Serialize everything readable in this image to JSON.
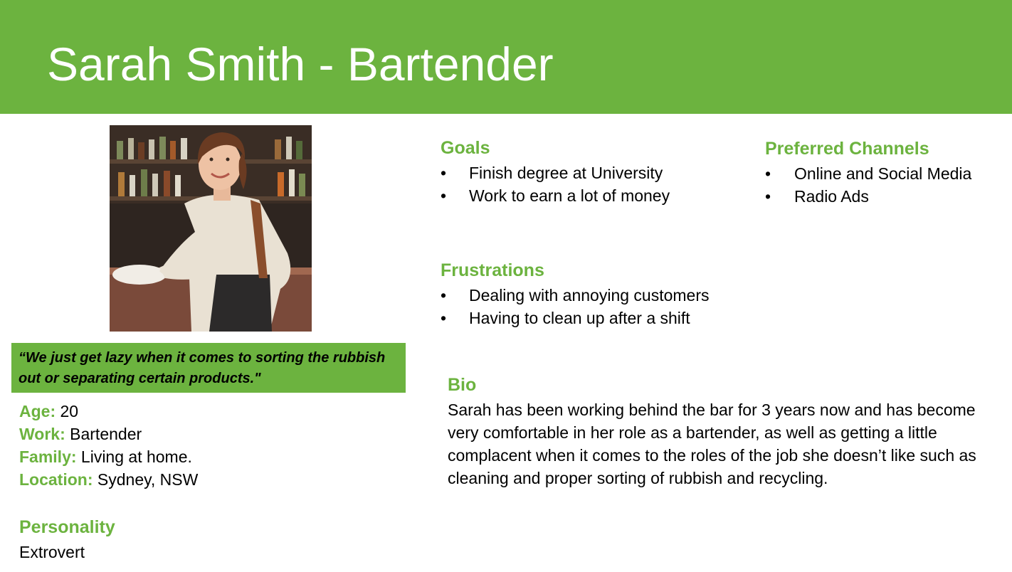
{
  "header": {
    "title": "Sarah Smith - Bartender",
    "color": "#6cb33f"
  },
  "photo": {
    "description_icon": "bartender-photo"
  },
  "quote": "“We just get lazy when it comes to sorting the rubbish out or separating certain products.\"",
  "profile": {
    "age_label": "Age:",
    "age": "20",
    "work_label": "Work:",
    "work": "Bartender",
    "family_label": "Family:",
    "family": "Living at home.",
    "location_label": "Location:",
    "location": "Sydney, NSW"
  },
  "personality": {
    "heading": "Personality",
    "value": "Extrovert"
  },
  "goals": {
    "heading": "Goals",
    "items": [
      "Finish degree at University",
      "Work to earn a lot of money"
    ]
  },
  "channels": {
    "heading": "Preferred Channels",
    "items": [
      "Online and Social Media",
      "Radio Ads"
    ]
  },
  "frustrations": {
    "heading": "Frustrations",
    "items": [
      "Dealing with annoying customers",
      "Having to clean up after a shift"
    ]
  },
  "bio": {
    "heading": "Bio",
    "text": "Sarah has been working behind the bar for 3 years now and has become very comfortable in her role as a bartender, as well as getting a little complacent when it comes to the roles of the job she doesn’t like such as cleaning and proper sorting of rubbish and recycling."
  },
  "bullet_char": "•"
}
